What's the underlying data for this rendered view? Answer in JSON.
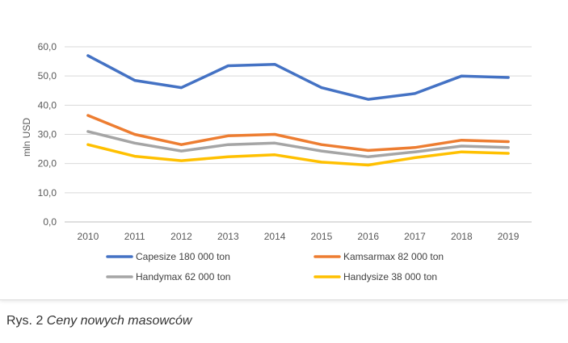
{
  "chart_data": {
    "type": "line",
    "title": "",
    "xlabel": "",
    "ylabel": "mln USD",
    "ylim": [
      0,
      60
    ],
    "yticks": [
      "0,0",
      "10,0",
      "20,0",
      "30,0",
      "40,0",
      "50,0",
      "60,0"
    ],
    "categories": [
      "2010",
      "2011",
      "2012",
      "2013",
      "2014",
      "2015",
      "2016",
      "2017",
      "2018",
      "2019"
    ],
    "grid": true,
    "legend_position": "bottom",
    "series": [
      {
        "name": "Capesize 180 000 ton",
        "color": "#4472C4",
        "values": [
          57.0,
          48.5,
          46.0,
          53.5,
          54.0,
          46.0,
          42.0,
          44.0,
          50.0,
          49.5
        ]
      },
      {
        "name": "Kamsarmax 82 000 ton",
        "color": "#ED7D31",
        "values": [
          36.5,
          30.0,
          26.5,
          29.5,
          30.0,
          26.5,
          24.5,
          25.5,
          28.0,
          27.5
        ]
      },
      {
        "name": "Handymax 62 000 ton",
        "color": "#A5A5A5",
        "values": [
          31.0,
          27.0,
          24.3,
          26.5,
          27.0,
          24.3,
          22.3,
          24.0,
          26.0,
          25.5
        ]
      },
      {
        "name": "Handysize 38 000 ton",
        "color": "#FFC000",
        "values": [
          26.5,
          22.5,
          21.0,
          22.3,
          23.0,
          20.5,
          19.5,
          22.0,
          24.0,
          23.5
        ]
      }
    ]
  },
  "caption": {
    "prefix": "Rys. 2 ",
    "title": "Ceny nowych masowców"
  }
}
